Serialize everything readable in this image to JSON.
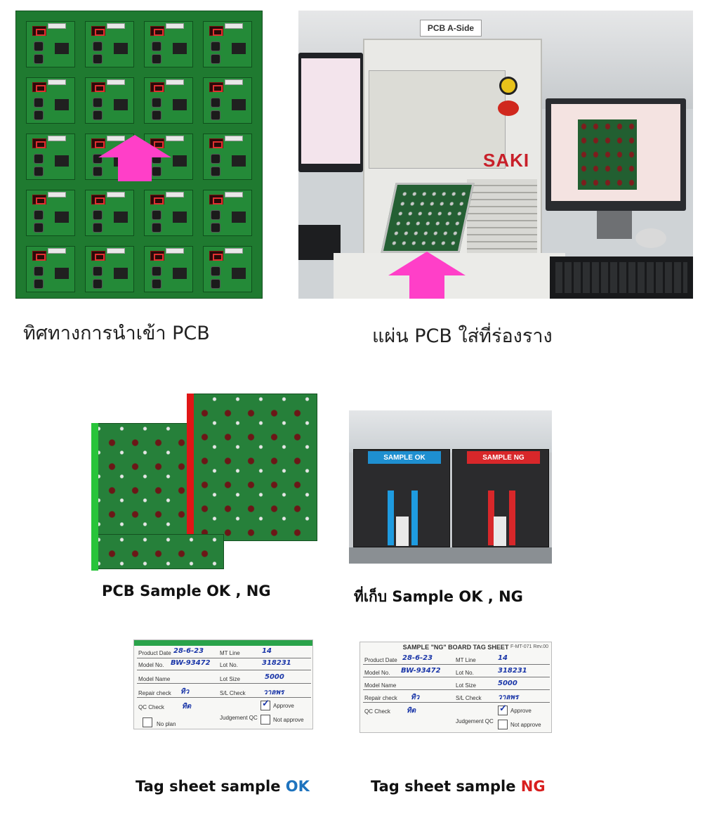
{
  "top_left": {
    "caption": "ทิศทางการนำเข้า PCB"
  },
  "top_right": {
    "caption": "แผ่น PCB ใส่ที่ร่องราง",
    "machine_label": "PCB A-Side",
    "machine_brand": "SAKI"
  },
  "middle_left": {
    "caption": "PCB Sample OK , NG"
  },
  "middle_right": {
    "caption": "ที่เก็บ Sample OK , NG",
    "bin_ok_label": "SAMPLE OK",
    "bin_ng_label": "SAMPLE NG"
  },
  "tag_ok": {
    "caption_prefix": "Tag sheet sample ",
    "caption_status": "OK",
    "status_color": "#1e73be",
    "fields": {
      "product_date_label": "Product Date",
      "product_date_value": "28-6-23",
      "mt_line_label": "MT Line",
      "mt_line_value": "14",
      "model_no_label": "Model No.",
      "model_no_value": "BW-93472",
      "lot_no_label": "Lot No.",
      "lot_no_value": "318231",
      "model_name_label": "Model Name",
      "lot_size_label": "Lot Size",
      "lot_size_value": "5000",
      "repair_check_label": "Repair check",
      "repair_check_value": "ทิว",
      "sl_check_label": "S/L Check",
      "sl_check_value": "วาลพร",
      "qc_check_label": "QC Check",
      "qc_check_value": "ทิด",
      "judgement_label": "Judgement QC",
      "approve_label": "Approve",
      "not_approve_label": "Not approve",
      "no_plan_label": "No plan"
    }
  },
  "tag_ng": {
    "caption_prefix": "Tag sheet sample ",
    "caption_status": "NG",
    "status_color": "#d81e1e",
    "title": "SAMPLE \"NG\" BOARD TAG SHEET",
    "version": "F-MT-071 Rev.00",
    "fields": {
      "product_date_label": "Product Date",
      "product_date_value": "28-6-23",
      "mt_line_label": "MT Line",
      "mt_line_value": "14",
      "model_no_label": "Model No.",
      "model_no_value": "BW-93472",
      "lot_no_label": "Lot No.",
      "lot_no_value": "318231",
      "model_name_label": "Model Name",
      "lot_size_label": "Lot Size",
      "lot_size_value": "5000",
      "repair_check_label": "Repair check",
      "repair_check_value": "ทิว",
      "sl_check_label": "S/L Check",
      "sl_check_value": "วาลพร",
      "qc_check_label": "QC Check",
      "qc_check_value": "ทิด",
      "judgement_label": "Judgement QC",
      "approve_label": "Approve",
      "not_approve_label": "Not approve"
    }
  },
  "colors": {
    "pcb_green": "#1f7a30",
    "arrow_pink": "#ff3fc8",
    "ok_marker": "#28c43a",
    "ng_marker": "#e01616"
  }
}
